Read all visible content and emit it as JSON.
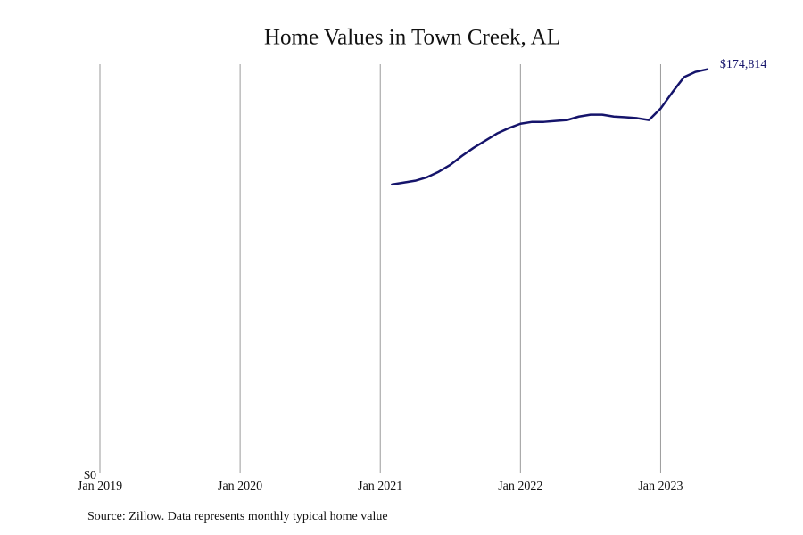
{
  "chart_data": {
    "type": "line",
    "title": "Home Values in Town Creek, AL",
    "source": "Source: Zillow. Data represents monthly typical home value",
    "x": [
      "2021-02",
      "2021-03",
      "2021-04",
      "2021-05",
      "2021-06",
      "2021-07",
      "2021-08",
      "2021-09",
      "2021-10",
      "2021-11",
      "2021-12",
      "2022-01",
      "2022-02",
      "2022-03",
      "2022-04",
      "2022-05",
      "2022-06",
      "2022-07",
      "2022-08",
      "2022-09",
      "2022-10",
      "2022-11",
      "2022-12",
      "2023-01",
      "2023-02",
      "2023-03",
      "2023-04",
      "2023-05"
    ],
    "series": [
      {
        "color": "#15146b",
        "values": [
          124900,
          125700,
          126500,
          128000,
          130400,
          133400,
          137300,
          140800,
          143900,
          147000,
          149300,
          151200,
          152000,
          152000,
          152400,
          152800,
          154300,
          155100,
          155100,
          154300,
          154000,
          153600,
          152800,
          157800,
          164800,
          171400,
          173700,
          174814
        ],
        "value_labels": {
          "27": "$174,814"
        }
      }
    ],
    "xlim": [
      "2019-01",
      "2023-07"
    ],
    "xticks": [
      {
        "value": "2019-01",
        "label": "Jan 2019"
      },
      {
        "value": "2020-01",
        "label": "Jan 2020"
      },
      {
        "value": "2021-01",
        "label": "Jan 2021"
      },
      {
        "value": "2022-01",
        "label": "Jan 2022"
      },
      {
        "value": "2023-01",
        "label": "Jan 2023"
      }
    ],
    "ylim": [
      0,
      177000
    ],
    "yticks": [
      {
        "value": 0,
        "label": "$0"
      }
    ],
    "grid": true
  }
}
